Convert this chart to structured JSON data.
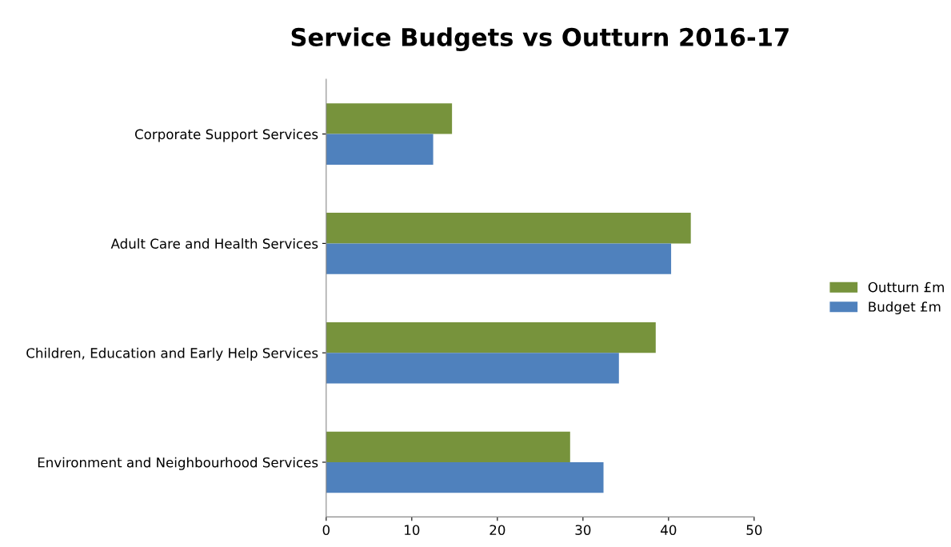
{
  "chart_data": {
    "type": "bar",
    "orientation": "horizontal",
    "title": "Service Budgets vs Outturn 2016-17",
    "categories": [
      "Corporate Support Services",
      "Adult Care and Health Services",
      "Children, Education and Early Help Services",
      "Environment and Neighbourhood Services"
    ],
    "series": [
      {
        "name": "Outturn £m",
        "color": "#77933c",
        "values": [
          14.7,
          42.6,
          38.5,
          28.5
        ]
      },
      {
        "name": "Budget £m",
        "color": "#4f81bd",
        "values": [
          12.5,
          40.3,
          34.2,
          32.4
        ]
      }
    ],
    "xlim": [
      0,
      50
    ],
    "xticks": [
      0,
      10,
      20,
      30,
      40,
      50
    ],
    "grid": false,
    "legend": "right"
  }
}
